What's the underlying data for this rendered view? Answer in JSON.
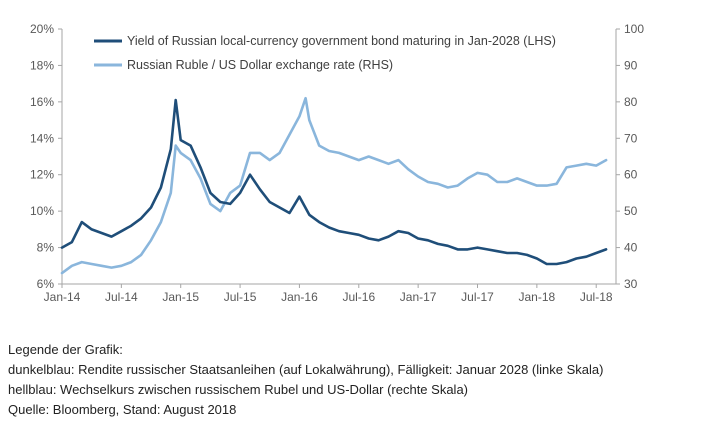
{
  "colors": {
    "dark_series": "#1f4e79",
    "light_series": "#8ab6dc",
    "axis": "#a6a6a6",
    "text": "#595959"
  },
  "caption": {
    "heading": "Legende der Grafik:",
    "line1": "dunkelblau: Rendite russischer Staatsanleihen (auf Lokalwährung), Fälligkeit: Januar 2028 (linke Skala)",
    "line2": "hellblau: Wechselkurs zwischen russischem Rubel und US-Dollar (rechte Skala)",
    "line3": "Quelle: Bloomberg, Stand: August 2018"
  },
  "chart_data": {
    "type": "line",
    "title": "",
    "x_ticks": [
      "Jan-14",
      "Jul-14",
      "Jan-15",
      "Jul-15",
      "Jan-16",
      "Jul-16",
      "Jan-17",
      "Jul-17",
      "Jan-18",
      "Jul-18"
    ],
    "xlim": [
      "2014-01",
      "2018-08"
    ],
    "y_left": {
      "ylim": [
        6,
        20
      ],
      "ticks": [
        "6%",
        "8%",
        "10%",
        "12%",
        "14%",
        "16%",
        "18%",
        "20%"
      ]
    },
    "y_right": {
      "ylim": [
        30,
        100
      ],
      "ticks": [
        "30",
        "40",
        "50",
        "60",
        "70",
        "80",
        "90",
        "100"
      ]
    },
    "grid": false,
    "legend_position": "top-left",
    "series": [
      {
        "name": "Yield of Russian local-currency government bond maturing in Jan-2028 (LHS)",
        "axis": "left",
        "color": "#1f4e79",
        "x": [
          "2014-01",
          "2014-02",
          "2014-03",
          "2014-04",
          "2014-05",
          "2014-06",
          "2014-07",
          "2014-08",
          "2014-09",
          "2014-10",
          "2014-11",
          "2014-12",
          "2014-12-16",
          "2015-01",
          "2015-02",
          "2015-03",
          "2015-04",
          "2015-05",
          "2015-06",
          "2015-07",
          "2015-08",
          "2015-09",
          "2015-10",
          "2015-11",
          "2015-12",
          "2016-01",
          "2016-02",
          "2016-03",
          "2016-04",
          "2016-05",
          "2016-06",
          "2016-07",
          "2016-08",
          "2016-09",
          "2016-10",
          "2016-11",
          "2016-12",
          "2017-01",
          "2017-02",
          "2017-03",
          "2017-04",
          "2017-05",
          "2017-06",
          "2017-07",
          "2017-08",
          "2017-09",
          "2017-10",
          "2017-11",
          "2017-12",
          "2018-01",
          "2018-02",
          "2018-03",
          "2018-04",
          "2018-05",
          "2018-06",
          "2018-07",
          "2018-08"
        ],
        "y": [
          8.0,
          8.3,
          9.4,
          9.0,
          8.8,
          8.6,
          8.9,
          9.2,
          9.6,
          10.2,
          11.3,
          13.4,
          16.1,
          13.9,
          13.6,
          12.4,
          11.0,
          10.5,
          10.4,
          11.0,
          12.0,
          11.2,
          10.5,
          10.2,
          9.9,
          10.8,
          9.8,
          9.4,
          9.1,
          8.9,
          8.8,
          8.7,
          8.5,
          8.4,
          8.6,
          8.9,
          8.8,
          8.5,
          8.4,
          8.2,
          8.1,
          7.9,
          7.9,
          8.0,
          7.9,
          7.8,
          7.7,
          7.7,
          7.6,
          7.4,
          7.1,
          7.1,
          7.2,
          7.4,
          7.5,
          7.7,
          7.9
        ]
      },
      {
        "name": "Russian Ruble / US Dollar exchange rate (RHS)",
        "axis": "right",
        "color": "#8ab6dc",
        "x": [
          "2014-01",
          "2014-02",
          "2014-03",
          "2014-04",
          "2014-05",
          "2014-06",
          "2014-07",
          "2014-08",
          "2014-09",
          "2014-10",
          "2014-11",
          "2014-12",
          "2014-12-16",
          "2015-01",
          "2015-02",
          "2015-03",
          "2015-04",
          "2015-05",
          "2015-06",
          "2015-07",
          "2015-08",
          "2015-09",
          "2015-10",
          "2015-11",
          "2015-12",
          "2016-01",
          "2016-01-20",
          "2016-02",
          "2016-03",
          "2016-04",
          "2016-05",
          "2016-06",
          "2016-07",
          "2016-08",
          "2016-09",
          "2016-10",
          "2016-11",
          "2016-12",
          "2017-01",
          "2017-02",
          "2017-03",
          "2017-04",
          "2017-05",
          "2017-06",
          "2017-07",
          "2017-08",
          "2017-09",
          "2017-10",
          "2017-11",
          "2017-12",
          "2018-01",
          "2018-02",
          "2018-03",
          "2018-04",
          "2018-05",
          "2018-06",
          "2018-07",
          "2018-08"
        ],
        "y": [
          33.0,
          35.0,
          36.0,
          35.5,
          35.0,
          34.5,
          35.0,
          36.0,
          38.0,
          42.0,
          47.0,
          55.0,
          68.0,
          66.0,
          64.0,
          59.0,
          52.0,
          50.0,
          55.0,
          57.0,
          66.0,
          66.0,
          64.0,
          66.0,
          71.0,
          76.0,
          81.0,
          75.0,
          68.0,
          66.5,
          66.0,
          65.0,
          64.0,
          65.0,
          64.0,
          63.0,
          64.0,
          61.5,
          59.5,
          58.0,
          57.5,
          56.5,
          57.0,
          59.0,
          60.5,
          60.0,
          58.0,
          58.0,
          59.0,
          58.0,
          57.0,
          57.0,
          57.5,
          62.0,
          62.5,
          63.0,
          62.5,
          64.0
        ]
      }
    ]
  }
}
